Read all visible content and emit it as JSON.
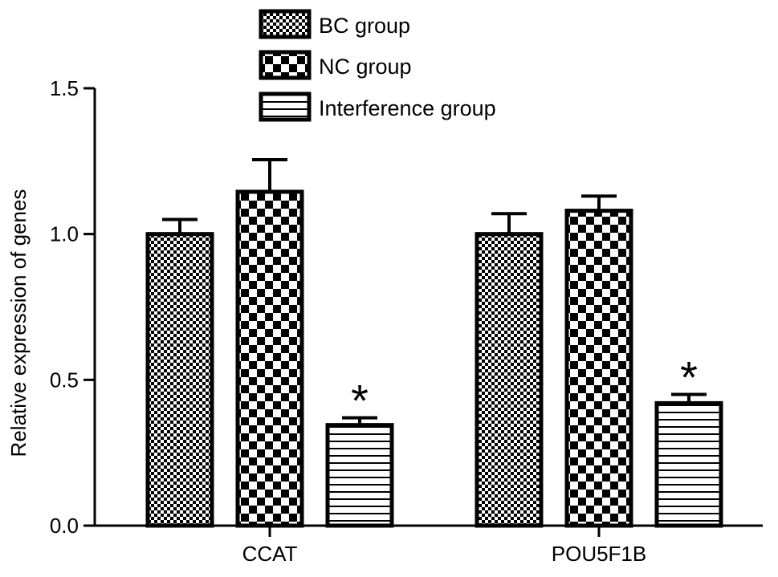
{
  "chart_data": {
    "type": "bar",
    "title": "",
    "xlabel": "",
    "ylabel": "Relative expression of genes",
    "ylim": [
      0,
      1.5
    ],
    "yticks": [
      "0.0",
      "0.5",
      "1.0",
      "1.5"
    ],
    "categories": [
      "CCAT",
      "POU5F1B"
    ],
    "legend_position": "top",
    "series": [
      {
        "name": "BC group",
        "pattern": "fine-checker",
        "values": [
          1.0,
          1.0
        ],
        "errors": [
          0.05,
          0.07
        ]
      },
      {
        "name": "NC group",
        "pattern": "coarse-checker",
        "values": [
          1.145,
          1.08
        ],
        "errors": [
          0.11,
          0.05
        ]
      },
      {
        "name": "Interference group",
        "pattern": "horizontal-stripes",
        "values": [
          0.345,
          0.42
        ],
        "errors": [
          0.025,
          0.03
        ]
      }
    ],
    "annotations": [
      {
        "text": "*",
        "category": "CCAT",
        "series": "Interference group"
      },
      {
        "text": "*",
        "category": "POU5F1B",
        "series": "Interference group"
      }
    ]
  }
}
